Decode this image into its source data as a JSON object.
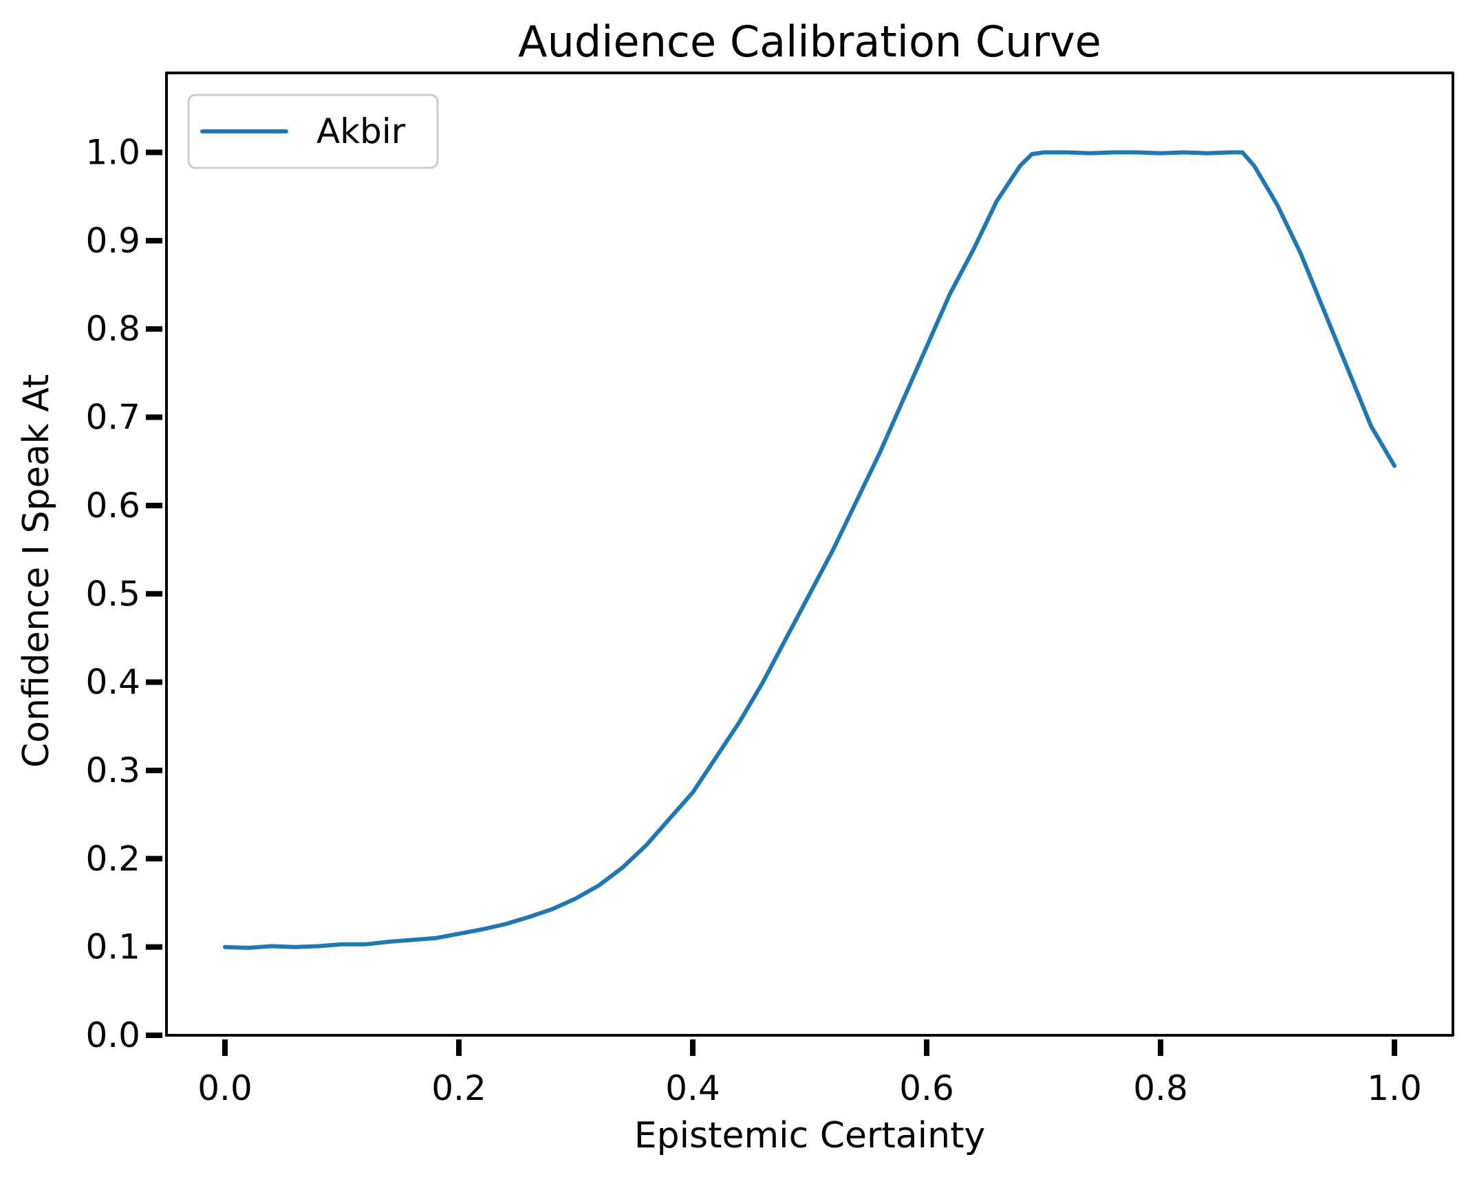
{
  "chart_data": {
    "type": "line",
    "title": "Audience Calibration Curve",
    "xlabel": "Epistemic Certainty",
    "ylabel": "Confidence I Speak At",
    "xlim": [
      -0.05,
      1.05
    ],
    "ylim": [
      0.0,
      1.09
    ],
    "x_ticks": [
      0.0,
      0.2,
      0.4,
      0.6,
      0.8,
      1.0
    ],
    "x_tick_labels": [
      "0.0",
      "0.2",
      "0.4",
      "0.6",
      "0.8",
      "1.0"
    ],
    "y_ticks": [
      0.0,
      0.1,
      0.2,
      0.3,
      0.4,
      0.5,
      0.6,
      0.7,
      0.8,
      0.9,
      1.0
    ],
    "y_tick_labels": [
      "0.0",
      "0.1",
      "0.2",
      "0.3",
      "0.4",
      "0.5",
      "0.6",
      "0.7",
      "0.8",
      "0.9",
      "1.0"
    ],
    "grid": false,
    "legend_position": "top-left",
    "series": [
      {
        "name": "Akbir",
        "color": "#1f77b4",
        "x": [
          0.0,
          0.02,
          0.04,
          0.06,
          0.08,
          0.1,
          0.12,
          0.14,
          0.16,
          0.18,
          0.2,
          0.22,
          0.24,
          0.26,
          0.28,
          0.3,
          0.32,
          0.34,
          0.36,
          0.38,
          0.4,
          0.42,
          0.44,
          0.46,
          0.48,
          0.5,
          0.52,
          0.54,
          0.56,
          0.58,
          0.6,
          0.62,
          0.64,
          0.66,
          0.68,
          0.69,
          0.7,
          0.72,
          0.74,
          0.76,
          0.78,
          0.8,
          0.82,
          0.84,
          0.86,
          0.87,
          0.88,
          0.9,
          0.92,
          0.94,
          0.96,
          0.98,
          1.0
        ],
        "y": [
          0.1,
          0.099,
          0.101,
          0.1,
          0.101,
          0.103,
          0.103,
          0.106,
          0.108,
          0.11,
          0.115,
          0.12,
          0.126,
          0.134,
          0.143,
          0.155,
          0.17,
          0.19,
          0.215,
          0.245,
          0.275,
          0.315,
          0.355,
          0.4,
          0.45,
          0.5,
          0.55,
          0.605,
          0.66,
          0.72,
          0.78,
          0.84,
          0.89,
          0.945,
          0.985,
          0.998,
          1.0,
          1.0,
          0.999,
          1.0,
          1.0,
          0.999,
          1.0,
          0.999,
          1.0,
          1.0,
          0.985,
          0.94,
          0.885,
          0.82,
          0.755,
          0.69,
          0.645
        ]
      }
    ]
  }
}
